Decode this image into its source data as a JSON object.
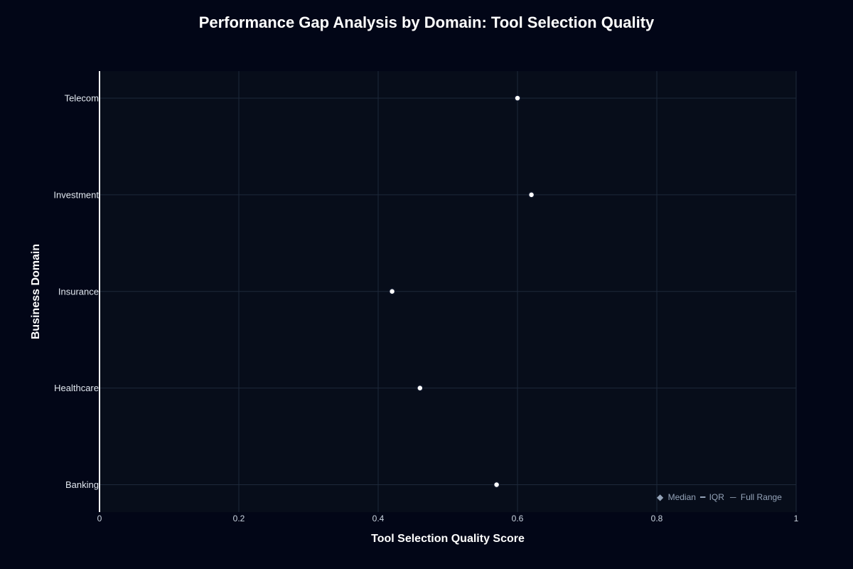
{
  "chart_data": {
    "type": "scatter",
    "title": "Performance Gap Analysis by Domain: Tool Selection Quality",
    "xlabel": "Tool Selection Quality Score",
    "ylabel": "Business Domain",
    "xlim": [
      0,
      1
    ],
    "x_ticks": [
      0,
      0.2,
      0.4,
      0.6,
      0.8,
      1
    ],
    "x_tick_labels": [
      "0",
      "0.2",
      "0.4",
      "0.6",
      "0.8",
      "1"
    ],
    "categories": [
      "Telecom",
      "Investment",
      "Insurance",
      "Healthcare",
      "Banking"
    ],
    "values": [
      0.6,
      0.62,
      0.42,
      0.46,
      0.57
    ],
    "grid": true,
    "legend": {
      "placement": "bottom-right",
      "items": [
        {
          "symbol": "◆",
          "label": "Median"
        },
        {
          "symbol": "━",
          "label": "IQR"
        },
        {
          "symbol": "─",
          "label": "Full Range"
        }
      ]
    },
    "colors": {
      "background": "#020617",
      "plot_background": "#070d1a",
      "grid": "#1e293b",
      "axis_line": "#ffffff",
      "marker_fill": "#ffffff",
      "marker_stroke": "#0f172a"
    }
  }
}
